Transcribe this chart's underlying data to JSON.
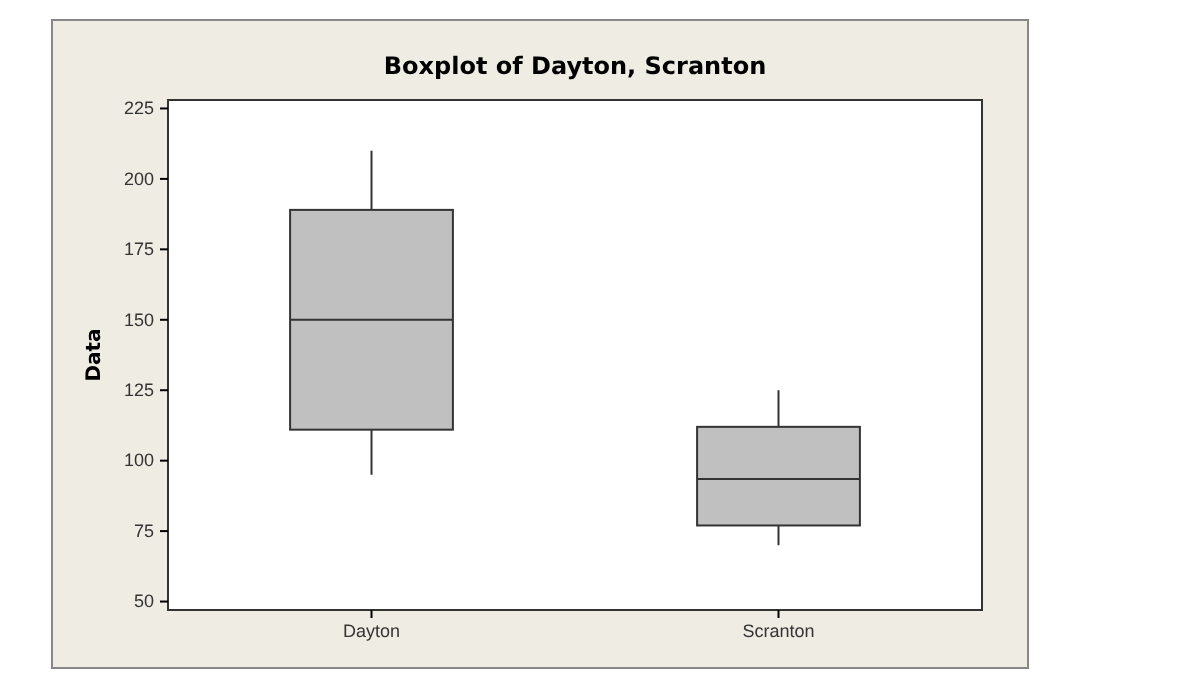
{
  "chart_data": {
    "type": "box",
    "title": "Boxplot of Dayton, Scranton",
    "ylabel": "Data",
    "categories": [
      "Dayton",
      "Scranton"
    ],
    "boxes": [
      {
        "low": 95,
        "q1": 111,
        "median": 150,
        "q3": 189,
        "high": 210
      },
      {
        "low": 70,
        "q1": 77,
        "median": 93.5,
        "q3": 112,
        "high": 125
      }
    ],
    "color": "#c0c0c0",
    "ylim": [
      47,
      228
    ],
    "yticks": [
      50,
      75,
      100,
      125,
      150,
      175,
      200,
      225
    ],
    "grid": false
  }
}
